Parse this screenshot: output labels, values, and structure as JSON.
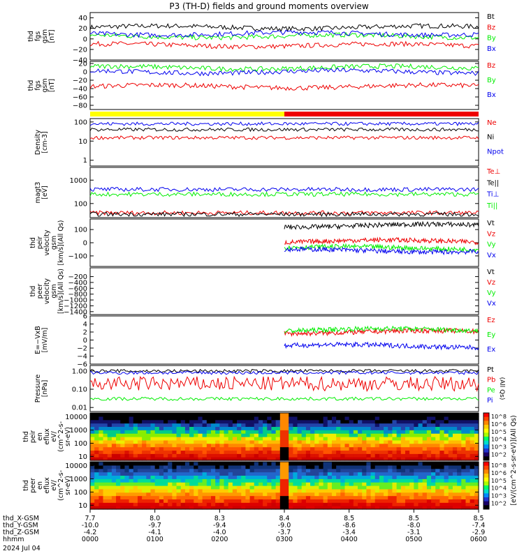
{
  "title": "P3 (TH-D) fields and ground moments overview",
  "colors": {
    "black": "#000000",
    "red": "#ee0000",
    "green": "#00ee00",
    "blue": "#0000ee",
    "yellow": "#ffff00",
    "bar_red": "#ee0000"
  },
  "status_bar": {
    "segments": [
      {
        "from": 0,
        "to": 0.5,
        "color": "yellow"
      },
      {
        "from": 0.5,
        "to": 1,
        "color": "bar_red"
      }
    ]
  },
  "x_axis": {
    "rows": [
      {
        "label": "thd_X-GSM",
        "values": [
          "7.7",
          "8.0",
          "8.3",
          "8.4",
          "8.5",
          "8.5",
          "8.5"
        ]
      },
      {
        "label": "thd_Y-GSM",
        "values": [
          "-10.0",
          "-9.7",
          "-9.4",
          "-9.0",
          "-8.6",
          "-8.0",
          "-7.4"
        ]
      },
      {
        "label": "thd_Z-GSM",
        "values": [
          "-4.2",
          "-4.1",
          "-4.0",
          "-3.7",
          "-3.4",
          "-3.1",
          "-2.9"
        ]
      },
      {
        "label": "hhmm",
        "values": [
          "0000",
          "0100",
          "0200",
          "0300",
          "0400",
          "0500",
          "0600"
        ]
      }
    ],
    "date": "2024 Jul 04"
  },
  "chart_data": [
    {
      "type": "line",
      "ylabel": [
        "thd",
        "fgs",
        "gsm",
        "[nT]"
      ],
      "ylim": [
        -40,
        50
      ],
      "ytick_labels": [
        "40",
        "20",
        "0",
        "−20",
        "−40"
      ],
      "series": [
        {
          "name": "Bt",
          "color": "black",
          "base": 22
        },
        {
          "name": "Bz",
          "color": "red",
          "base": -12
        },
        {
          "name": "By",
          "color": "green",
          "base": 5
        },
        {
          "name": "Bx",
          "color": "blue",
          "base": 10
        }
      ]
    },
    {
      "type": "line",
      "ylabel": [
        "thd",
        "fgs",
        "gsm",
        "[nT]"
      ],
      "ylim": [
        -90,
        25
      ],
      "ytick_labels": [
        "20",
        "0",
        "−20",
        "−40",
        "−60",
        "−80"
      ],
      "series": [
        {
          "name": "Bz",
          "color": "red",
          "base": -35
        },
        {
          "name": "By",
          "color": "green",
          "base": 10
        },
        {
          "name": "Bx",
          "color": "blue",
          "base": 0
        }
      ]
    },
    {
      "type": "line",
      "yscale": "log",
      "ylabel": [
        "Density",
        "[cm-3]"
      ],
      "ylim": [
        0.5,
        150
      ],
      "ytick_labels": [
        "100",
        "10",
        "1"
      ],
      "series": [
        {
          "name": "Ne",
          "color": "red",
          "base": 15
        },
        {
          "name": "Ni",
          "color": "black",
          "base": 40
        },
        {
          "name": "Npot",
          "color": "blue",
          "base": 80
        }
      ]
    },
    {
      "type": "line",
      "yscale": "log",
      "ylabel": [
        "magt3",
        "[eV]"
      ],
      "ylim": [
        25,
        3500
      ],
      "ytick_labels": [
        "1000",
        "100"
      ],
      "series": [
        {
          "name": "Te⊥",
          "color": "red",
          "base": 40
        },
        {
          "name": "Te||",
          "color": "black",
          "base": 35
        },
        {
          "name": "Ti⊥",
          "color": "blue",
          "base": 400
        },
        {
          "name": "Ti||",
          "color": "green",
          "base": 250
        }
      ]
    },
    {
      "type": "line",
      "ylabel": [
        "thd",
        "peir",
        "velocity",
        "gsm",
        "[km/s](All Qs)"
      ],
      "ylim": [
        -180,
        180
      ],
      "ytick_labels": [
        "100",
        "0",
        "−100"
      ],
      "series": [
        {
          "name": "Vt",
          "color": "black",
          "base": 130
        },
        {
          "name": "Vz",
          "color": "red",
          "base": 10
        },
        {
          "name": "Vy",
          "color": "green",
          "base": -40
        },
        {
          "name": "Vx",
          "color": "blue",
          "base": -60
        }
      ]
    },
    {
      "type": "line",
      "ylabel": [
        "thd",
        "peer",
        "velocity",
        "gsm",
        "[km/s](All Qs)"
      ],
      "ylim": [
        -1500,
        100
      ],
      "ytick_labels": [
        "−200",
        "−400",
        "−600",
        "−800",
        "−1000",
        "−1200",
        "−1400"
      ],
      "series": [
        {
          "name": "Vt",
          "color": "black"
        },
        {
          "name": "Vz",
          "color": "red"
        },
        {
          "name": "Vy",
          "color": "green"
        },
        {
          "name": "Vx",
          "color": "blue"
        }
      ]
    },
    {
      "type": "line",
      "ylabel": [
        "E=−VxB",
        "[mV/m]"
      ],
      "ylim": [
        -6,
        6
      ],
      "ytick_labels": [
        "6",
        "4",
        "2",
        "0",
        "−2",
        "−4",
        "−6"
      ],
      "series": [
        {
          "name": "Ez",
          "color": "red",
          "base": 2
        },
        {
          "name": "Ey",
          "color": "green",
          "base": 2.5
        },
        {
          "name": "Ex",
          "color": "blue",
          "base": -1.5
        }
      ]
    },
    {
      "type": "line",
      "yscale": "log",
      "ylabel": [
        "Pressure",
        "[nPa]"
      ],
      "ylim": [
        0.006,
        2
      ],
      "ytick_labels": [
        "1.00",
        "0.10",
        "0.01"
      ],
      "series": [
        {
          "name": "Pt",
          "color": "black",
          "base": 1.0
        },
        {
          "name": "Pb",
          "color": "red",
          "base": 0.2
        },
        {
          "name": "Pe",
          "color": "green",
          "base": 0.03
        },
        {
          "name": "Pi",
          "color": "blue",
          "base": 0.8
        }
      ],
      "right_axis_label": "(All Qs)"
    },
    {
      "type": "heatmap",
      "yscale": "log",
      "ylabel": [
        "thd",
        "peir",
        "en",
        "eflux",
        "eV/",
        "(cm^2-s-",
        "sr-eV)"
      ],
      "ylim": [
        5,
        20000
      ],
      "ytick_labels": [
        "10000",
        "1000",
        "100",
        "10"
      ]
    },
    {
      "type": "heatmap",
      "yscale": "log",
      "ylabel": [
        "thd",
        "peer",
        "en",
        "eflux",
        "eV/",
        "(cm^2-s-",
        "sr-eV)"
      ],
      "ylim": [
        5,
        20000
      ],
      "ytick_labels": [
        "10000",
        "1000",
        "100",
        "10"
      ]
    }
  ],
  "colorbars": [
    {
      "ticks": [
        "10^8",
        "10^6",
        "10^5",
        "10^4",
        "10^3",
        "10^2"
      ],
      "label": "[eV/(cm^2-s-sr-eV)](All Qs)"
    },
    {
      "ticks": [
        "10^8",
        "10^6",
        "10^5",
        "10^4",
        "10^3",
        "10^2"
      ],
      "label": "[eV/(cm^2-s-sr-eV)](All Qs)"
    }
  ]
}
